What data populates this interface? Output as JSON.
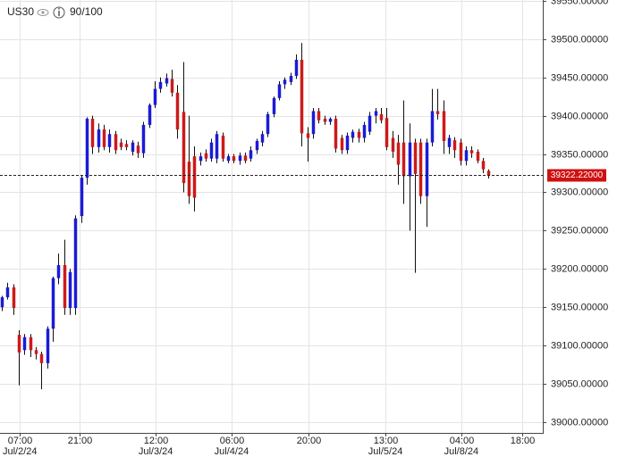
{
  "chart_data": {
    "type": "candlestick",
    "symbol": "US30",
    "counter": "90/100",
    "x": [
      0,
      1,
      2,
      3,
      4,
      5,
      6,
      7,
      8,
      9,
      10,
      11,
      12,
      13,
      14,
      15,
      16,
      17,
      18,
      19,
      20,
      21,
      22,
      23,
      24,
      25,
      26,
      27,
      28,
      29,
      30,
      31,
      32,
      33,
      34,
      35,
      36,
      37,
      38,
      39,
      40,
      41,
      42,
      43,
      44,
      45,
      46,
      47,
      48,
      49,
      50,
      51,
      52,
      53,
      54,
      55,
      56,
      57,
      58,
      59,
      60,
      61,
      62,
      63,
      64,
      65,
      66,
      67,
      68,
      69,
      70,
      71,
      72,
      73,
      74,
      75,
      76,
      77,
      78,
      79,
      80,
      81,
      82,
      83,
      84,
      85,
      86
    ],
    "open": [
      39150,
      39163,
      39176,
      39114,
      39094,
      39111,
      39094,
      39089,
      39077,
      39122,
      39188,
      39205,
      39149,
      39149,
      39269,
      39319,
      39396,
      39359,
      39382,
      39359,
      39376,
      39365,
      39363,
      39353,
      39361,
      39351,
      39388,
      39414,
      39435,
      39442,
      39448,
      39430,
      39405,
      39340,
      39347,
      39341,
      39351,
      39344,
      39344,
      39374,
      39341,
      39347,
      39341,
      39348,
      39344,
      39355,
      39365,
      39376,
      39402,
      39423,
      39441,
      39444,
      39452,
      39473,
      39377,
      39376,
      39406,
      39396,
      39392,
      39396,
      39371,
      39355,
      39371,
      39379,
      39371,
      39379,
      39400,
      39402,
      39397,
      39371,
      39365,
      39365,
      39321,
      39365,
      39365,
      39295,
      39365,
      39406,
      39406,
      39359,
      39368,
      39365,
      39341,
      39355,
      39353,
      39341,
      39328
    ],
    "high": [
      39165,
      39182,
      39180,
      39120,
      39115,
      39115,
      39098,
      39092,
      39125,
      39190,
      39220,
      39238,
      39200,
      39270,
      39322,
      39398,
      39400,
      39390,
      39388,
      39382,
      39380,
      39370,
      39368,
      39368,
      39366,
      39392,
      39416,
      39445,
      39450,
      39455,
      39460,
      39440,
      39470,
      39400,
      39360,
      39352,
      39356,
      39370,
      39380,
      39378,
      39350,
      39350,
      39352,
      39352,
      39360,
      39370,
      39380,
      39405,
      39425,
      39445,
      39450,
      39456,
      39480,
      39495,
      39385,
      39410,
      39410,
      39400,
      39398,
      39400,
      39375,
      39378,
      39382,
      39383,
      39392,
      39405,
      39410,
      39410,
      39410,
      39380,
      39375,
      39420,
      39390,
      39370,
      39370,
      39370,
      39435,
      39435,
      39420,
      39375,
      39372,
      39370,
      39360,
      39360,
      39356,
      39345,
      39330
    ],
    "low": [
      39145,
      39160,
      39140,
      39048,
      39088,
      39085,
      39082,
      39043,
      39070,
      39105,
      39180,
      39140,
      39140,
      39140,
      39260,
      39310,
      39350,
      39352,
      39355,
      39352,
      39350,
      39355,
      39355,
      39348,
      39345,
      39345,
      39384,
      39410,
      39430,
      39438,
      39425,
      39370,
      39300,
      39285,
      39275,
      39335,
      39340,
      39340,
      39338,
      39340,
      39338,
      39338,
      39336,
      39338,
      39340,
      39350,
      39360,
      39372,
      39398,
      39420,
      39435,
      39440,
      39448,
      39360,
      39340,
      39370,
      39390,
      39388,
      39388,
      39352,
      39350,
      39350,
      39365,
      39365,
      39365,
      39375,
      39390,
      39390,
      39355,
      39345,
      39310,
      39285,
      39250,
      39195,
      39285,
      39255,
      39360,
      39395,
      39350,
      39350,
      39345,
      39335,
      39335,
      39345,
      39338,
      39325,
      39318
    ],
    "close": [
      39163,
      39176,
      39149,
      39091,
      39111,
      39094,
      39089,
      39077,
      39122,
      39188,
      39205,
      39149,
      39196,
      39266,
      39319,
      39396,
      39359,
      39382,
      39359,
      39376,
      39355,
      39359,
      39359,
      39365,
      39351,
      39388,
      39414,
      39435,
      39444,
      39449,
      39430,
      39382,
      39312,
      39295,
      39293,
      39347,
      39344,
      39365,
      39376,
      39344,
      39347,
      39341,
      39348,
      39341,
      39355,
      39367,
      39376,
      39402,
      39423,
      39441,
      39447,
      39452,
      39473,
      39377,
      39371,
      39406,
      39394,
      39392,
      39396,
      39357,
      39355,
      39374,
      39379,
      39371,
      39388,
      39400,
      39406,
      39394,
      39359,
      39353,
      39336,
      39321,
      39365,
      39324,
      39295,
      39365,
      39406,
      39402,
      39367,
      39371,
      39355,
      39341,
      39355,
      39351,
      39341,
      39330,
      39322.22
    ],
    "up_color": "#1b1bd6",
    "down_color": "#cc1a1a",
    "last_price": {
      "value": 39322.22,
      "label": "39322.22000"
    },
    "xlim": [
      -0.32,
      95.6
    ],
    "xticks": [
      {
        "value": 3.2,
        "label": "07:00"
      },
      {
        "value": 13.7,
        "label": "21:00"
      },
      {
        "value": 27.2,
        "label": "12:00"
      },
      {
        "value": 40.6,
        "label": "06:00"
      },
      {
        "value": 54.2,
        "label": "20:00"
      },
      {
        "value": 67.8,
        "label": "13:00"
      },
      {
        "value": 81.2,
        "label": "04:00"
      },
      {
        "value": 91.9,
        "label": "18:00"
      }
    ],
    "date_labels": [
      {
        "value": 3.2,
        "label": "Jul/2/24"
      },
      {
        "value": 27.2,
        "label": "Jul/3/24"
      },
      {
        "value": 40.6,
        "label": "Jul/4/24"
      },
      {
        "value": 67.8,
        "label": "Jul/5/24"
      },
      {
        "value": 81.2,
        "label": "Jul/8/24"
      }
    ],
    "ylim": [
      38986,
      39551
    ],
    "yticks": [
      {
        "value": 39000,
        "label": "39000.00000"
      },
      {
        "value": 39050,
        "label": "39050.00000"
      },
      {
        "value": 39100,
        "label": "39100.00000"
      },
      {
        "value": 39150,
        "label": "39150.00000"
      },
      {
        "value": 39200,
        "label": "39200.00000"
      },
      {
        "value": 39250,
        "label": "39250.00000"
      },
      {
        "value": 39300,
        "label": "39300.00000"
      },
      {
        "value": 39350,
        "label": "39350.00000"
      },
      {
        "value": 39400,
        "label": "39400.00000"
      },
      {
        "value": 39450,
        "label": "39450.00000"
      },
      {
        "value": 39500,
        "label": "39500.00000"
      },
      {
        "value": 39550,
        "label": "39550.00000"
      }
    ],
    "grid": true
  }
}
